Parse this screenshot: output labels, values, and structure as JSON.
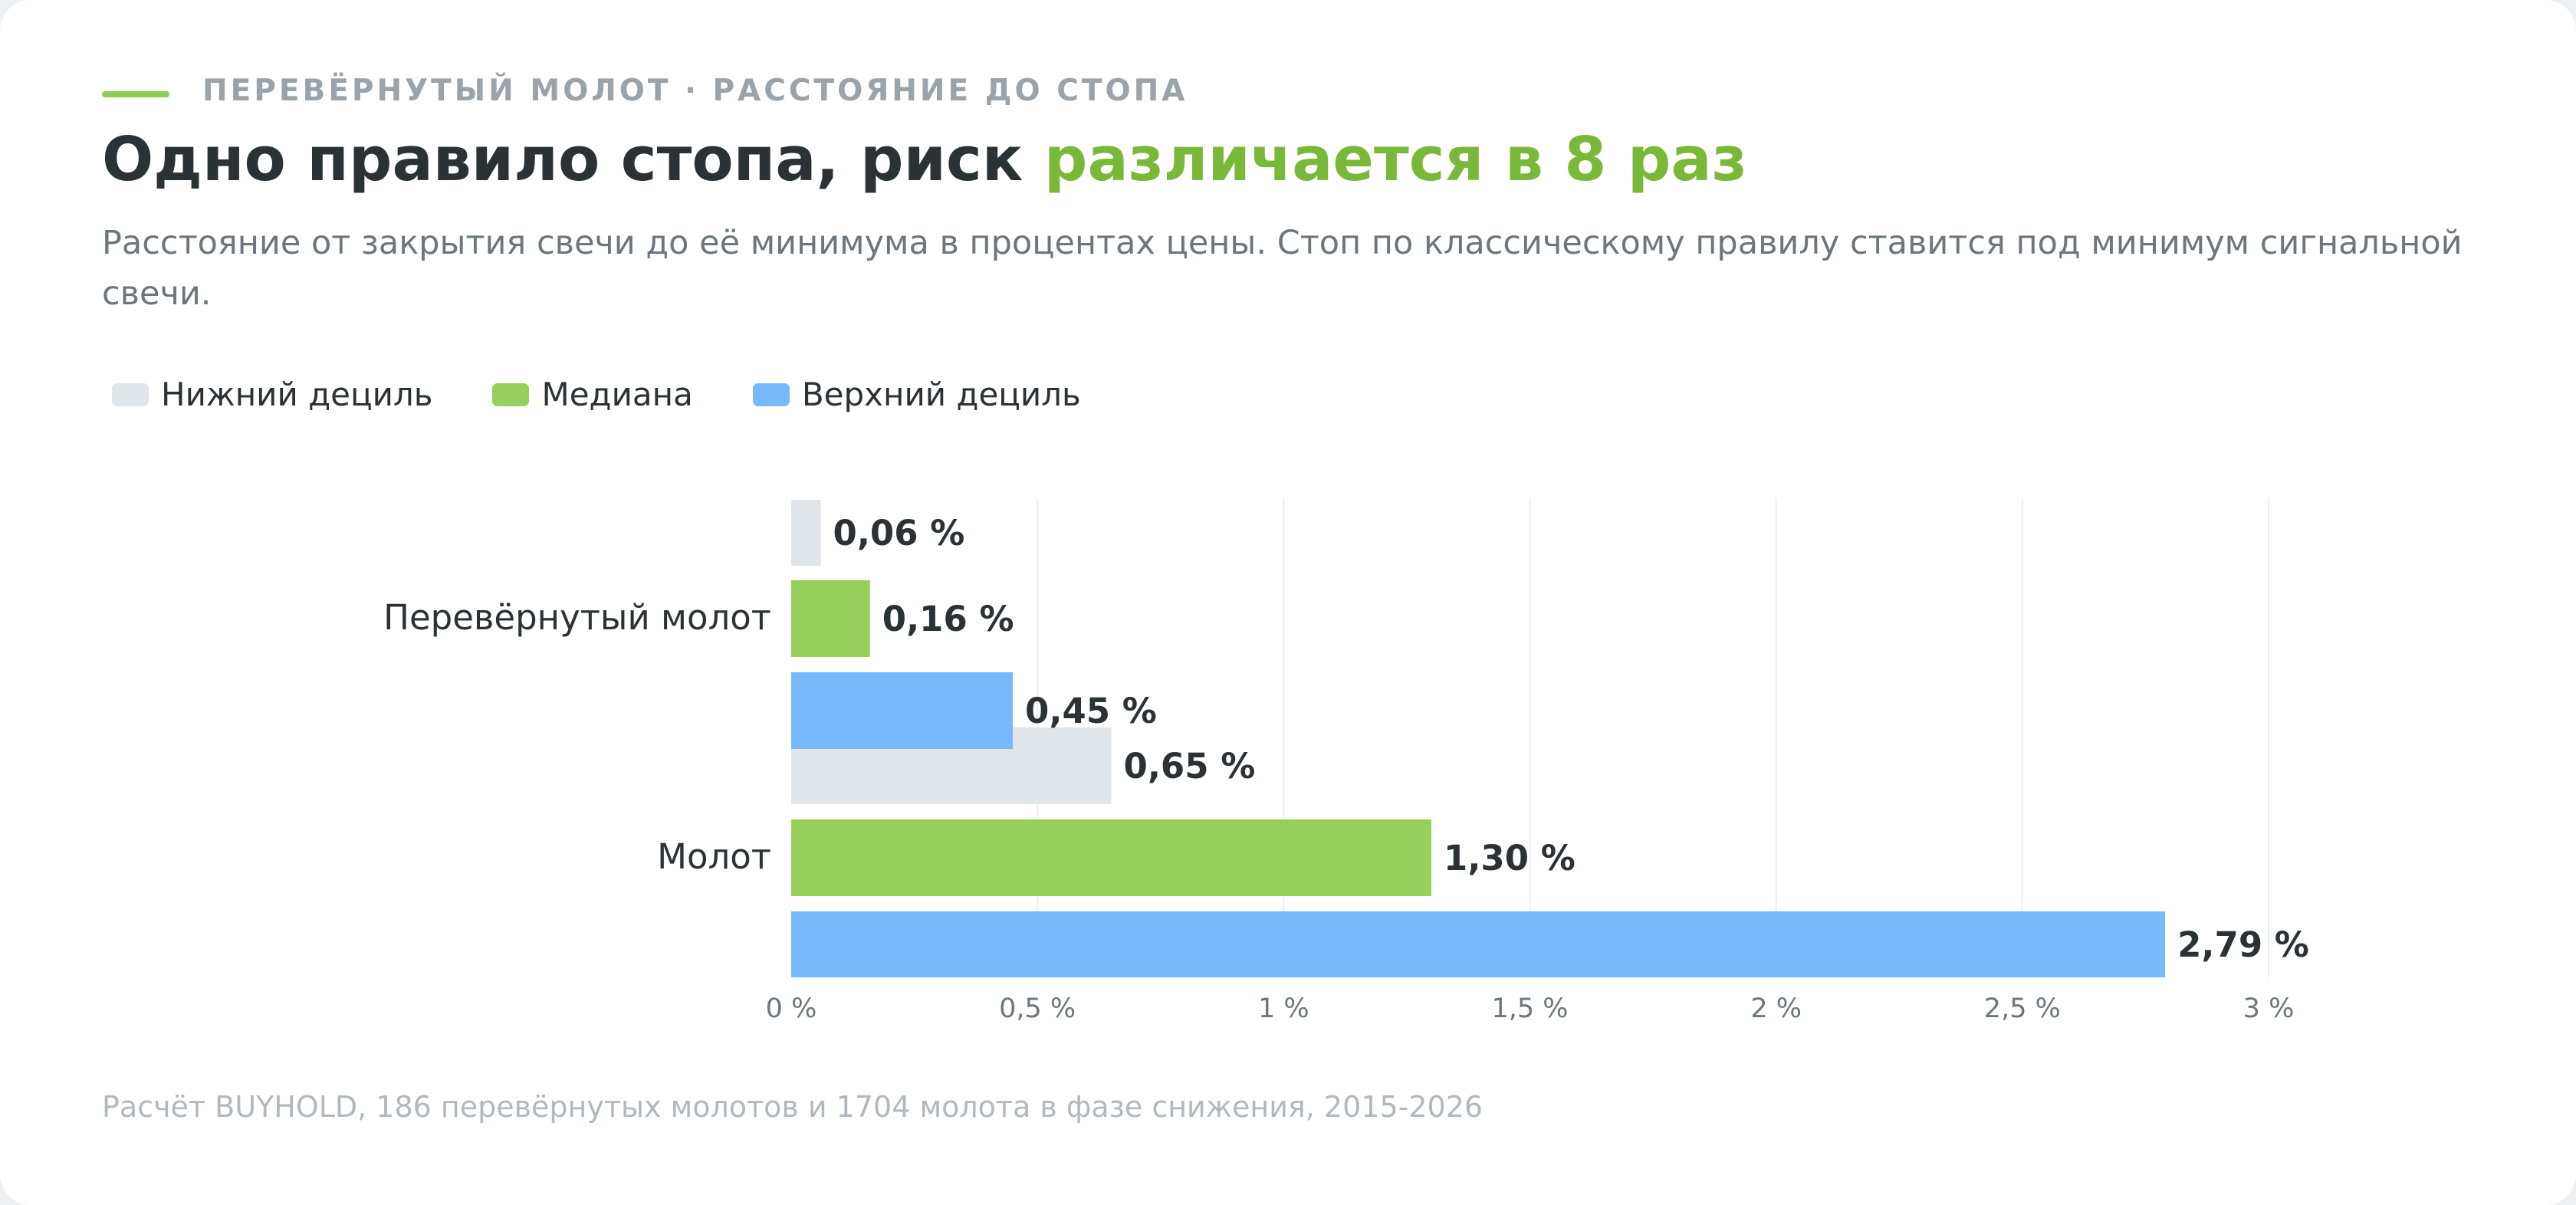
{
  "header": {
    "kicker": "ПЕРЕВЁРНУТЫЙ МОЛОТ · РАССТОЯНИЕ ДО СТОПА",
    "title_main": "Одно правило стопа, риск ",
    "title_accent": "различается в 8 раз",
    "subtitle": "Расстояние от закрытия свечи до её минимума в процентах цены. Стоп по классическому правилу ставится под минимум сигнальной свечи."
  },
  "legend": [
    {
      "label": "Нижний дециль",
      "color": "#dfe5e8"
    },
    {
      "label": "Медиана",
      "color": "#97cf5b"
    },
    {
      "label": "Верхний дециль",
      "color": "#78b9fc"
    }
  ],
  "source": "Расчёт BUYHOLD, 186 перевёрнутых молотов и 1704 молота в фазе снижения, 2015-2026",
  "colors": {
    "accent": "#7ab83a",
    "low": "#dfe5e8",
    "median": "#97cf5b",
    "high": "#78b9fc"
  },
  "chart_data": {
    "type": "bar",
    "orientation": "horizontal",
    "categories": [
      "Перевёрнутый молот",
      "Молот"
    ],
    "series": [
      {
        "name": "Нижний дециль",
        "values": [
          0.06,
          0.65
        ],
        "labels": [
          "0,06 %",
          "0,65 %"
        ],
        "color": "#dfe5e8"
      },
      {
        "name": "Медиана",
        "values": [
          0.16,
          1.3
        ],
        "labels": [
          "0,16 %",
          "1,30 %"
        ],
        "color": "#97cf5b"
      },
      {
        "name": "Верхний дециль",
        "values": [
          0.45,
          2.79
        ],
        "labels": [
          "0,45 %",
          "2,79 %"
        ],
        "color": "#78b9fc"
      }
    ],
    "xlim": [
      0,
      3
    ],
    "xticks": [
      {
        "value": 0,
        "label": "0 %"
      },
      {
        "value": 0.5,
        "label": "0,5 %"
      },
      {
        "value": 1,
        "label": "1 %"
      },
      {
        "value": 1.5,
        "label": "1,5 %"
      },
      {
        "value": 2,
        "label": "2 %"
      },
      {
        "value": 2.5,
        "label": "2,5 %"
      },
      {
        "value": 3,
        "label": "3 %"
      }
    ],
    "grid": true,
    "legend_position": "top-left"
  }
}
